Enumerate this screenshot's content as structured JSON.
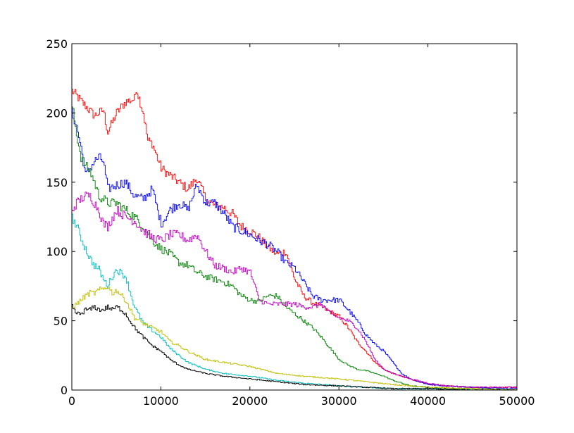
{
  "chart_data": {
    "type": "line",
    "title": "",
    "xlabel": "",
    "ylabel": "",
    "xlim": [
      0,
      50000
    ],
    "ylim": [
      0,
      250
    ],
    "grid": false,
    "legend": "none",
    "xticks": [
      0,
      10000,
      20000,
      30000,
      40000,
      50000
    ],
    "xtick_labels": [
      "0",
      "10000",
      "20000",
      "30000",
      "40000",
      "50000"
    ],
    "yticks": [
      0,
      50,
      100,
      150,
      200,
      250
    ],
    "ytick_labels": [
      "0",
      "50",
      "100",
      "150",
      "200",
      "250"
    ],
    "series": [
      {
        "color": "#ff0000",
        "x": [
          0,
          1500,
          2500,
          3500,
          4000,
          5000,
          6000,
          7000,
          7200,
          8000,
          8500,
          9000,
          10000,
          11000,
          12000,
          13000,
          14000,
          15000,
          16000,
          17000,
          18000,
          19000,
          20000,
          21000,
          22000,
          23000,
          24000,
          25000,
          26000,
          27000,
          28000,
          30000,
          31000,
          32000,
          33000,
          34000,
          35000,
          36000,
          37000,
          38000,
          39000,
          40000,
          42000,
          45000,
          50000
        ],
        "y": [
          216,
          205,
          198,
          202,
          186,
          200,
          208,
          210,
          218,
          200,
          180,
          178,
          160,
          155,
          150,
          145,
          153,
          138,
          133,
          132,
          127,
          118,
          115,
          110,
          103,
          98,
          100,
          80,
          68,
          63,
          60,
          53,
          45,
          35,
          28,
          20,
          15,
          12,
          10,
          8,
          6,
          4,
          3,
          2,
          2
        ]
      },
      {
        "color": "#0000ff",
        "x": [
          0,
          500,
          1000,
          1500,
          2000,
          2500,
          3000,
          3500,
          4000,
          5000,
          6000,
          7000,
          8000,
          9000,
          10000,
          11000,
          12000,
          13000,
          14000,
          15000,
          16000,
          17000,
          18000,
          19000,
          20000,
          21000,
          22000,
          23000,
          24000,
          25000,
          26000,
          27000,
          28000,
          29000,
          30000,
          31000,
          32000,
          33000,
          34000,
          35000,
          36000,
          37000,
          38000,
          39000,
          40000,
          42000,
          45000,
          50000
        ],
        "y": [
          200,
          190,
          175,
          155,
          160,
          165,
          168,
          165,
          145,
          148,
          150,
          140,
          138,
          145,
          120,
          130,
          135,
          130,
          148,
          135,
          135,
          128,
          118,
          115,
          112,
          108,
          105,
          100,
          92,
          88,
          78,
          68,
          65,
          65,
          65,
          58,
          50,
          40,
          33,
          28,
          20,
          12,
          8,
          6,
          4,
          3,
          2,
          1
        ]
      },
      {
        "color": "#008000",
        "x": [
          0,
          500,
          1000,
          1500,
          2000,
          2500,
          3000,
          3500,
          4000,
          5000,
          6000,
          7000,
          8000,
          9000,
          10000,
          11000,
          12000,
          13000,
          14000,
          15000,
          16000,
          17000,
          18000,
          19000,
          20000,
          21000,
          22000,
          23000,
          24000,
          25000,
          26000,
          27000,
          28000,
          29000,
          30000,
          31000,
          32000,
          33000,
          34000,
          35000,
          36000,
          37000,
          38000,
          40000,
          42000,
          45000,
          50000
        ],
        "y": [
          205,
          185,
          168,
          162,
          158,
          150,
          140,
          138,
          135,
          135,
          130,
          125,
          118,
          108,
          102,
          98,
          92,
          90,
          85,
          82,
          80,
          78,
          75,
          68,
          65,
          64,
          68,
          68,
          60,
          55,
          50,
          45,
          38,
          30,
          22,
          18,
          15,
          14,
          12,
          10,
          7,
          5,
          3,
          2,
          1,
          1,
          0
        ]
      },
      {
        "color": "#bf00bf",
        "x": [
          0,
          500,
          1000,
          1500,
          2000,
          2500,
          3000,
          3500,
          4000,
          5000,
          6000,
          7000,
          8000,
          9000,
          10000,
          11000,
          12000,
          13000,
          14000,
          15000,
          16000,
          17000,
          18000,
          19000,
          20000,
          21000,
          22000,
          23000,
          24000,
          25000,
          26000,
          27000,
          28000,
          29000,
          30000,
          31000,
          32000,
          33000,
          34000,
          35000,
          36000,
          37000,
          38000,
          40000,
          42000,
          45000,
          50000
        ],
        "y": [
          130,
          135,
          138,
          140,
          140,
          135,
          130,
          120,
          118,
          130,
          125,
          122,
          115,
          110,
          108,
          112,
          112,
          108,
          112,
          100,
          90,
          88,
          85,
          88,
          85,
          65,
          62,
          62,
          62,
          62,
          60,
          60,
          62,
          55,
          52,
          50,
          45,
          35,
          22,
          15,
          12,
          10,
          8,
          5,
          3,
          2,
          2
        ]
      },
      {
        "color": "#00bfbf",
        "x": [
          0,
          500,
          1000,
          1500,
          2000,
          2500,
          3000,
          3500,
          4000,
          4500,
          5000,
          6000,
          7000,
          8000,
          9000,
          10000,
          11000,
          12000,
          13000,
          15000,
          17000,
          20000,
          23000,
          26000,
          30000,
          33000,
          36000,
          40000,
          45000,
          50000
        ],
        "y": [
          125,
          118,
          110,
          102,
          95,
          90,
          87,
          80,
          75,
          82,
          87,
          82,
          60,
          48,
          43,
          38,
          30,
          25,
          20,
          15,
          12,
          10,
          7,
          5,
          3,
          2,
          1,
          1,
          0,
          0
        ]
      },
      {
        "color": "#bfbf00",
        "x": [
          0,
          500,
          1000,
          1500,
          2000,
          2500,
          3000,
          3500,
          4000,
          4500,
          5000,
          6000,
          7000,
          8000,
          9000,
          10000,
          11000,
          12000,
          13000,
          14000,
          15000,
          17000,
          20000,
          23000,
          26000,
          30000,
          33000,
          36000,
          40000,
          45000,
          50000
        ],
        "y": [
          60,
          62,
          65,
          68,
          70,
          70,
          72,
          73,
          75,
          70,
          72,
          65,
          52,
          48,
          45,
          42,
          35,
          32,
          28,
          25,
          22,
          20,
          17,
          12,
          10,
          8,
          6,
          4,
          2,
          1,
          0
        ]
      },
      {
        "color": "#000000",
        "x": [
          0,
          500,
          1000,
          1500,
          2000,
          2500,
          3000,
          3500,
          4000,
          4500,
          5000,
          5500,
          6000,
          7000,
          8000,
          9000,
          10000,
          11000,
          12000,
          13000,
          15000,
          17000,
          20000,
          23000,
          26000,
          30000,
          33000,
          36000,
          40000,
          45000,
          50000
        ],
        "y": [
          60,
          55,
          55,
          58,
          58,
          60,
          58,
          58,
          60,
          58,
          60,
          58,
          55,
          45,
          38,
          32,
          28,
          22,
          18,
          15,
          12,
          10,
          8,
          6,
          4,
          3,
          2,
          1,
          1,
          0,
          0
        ]
      }
    ]
  }
}
